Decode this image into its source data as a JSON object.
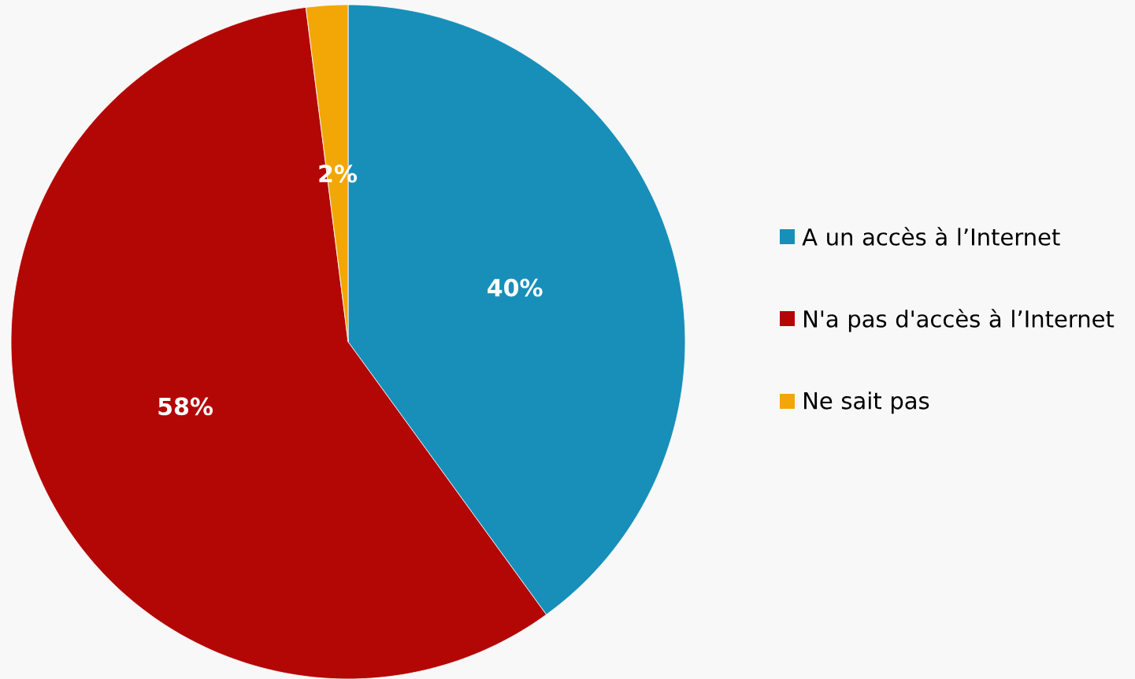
{
  "chart_data": {
    "type": "pie",
    "categories": [
      "A un accès à l’Internet",
      "N'a pas d'accès à l’Internet",
      "Ne sait pas"
    ],
    "values": [
      40,
      58,
      2
    ],
    "colors": [
      "#188fb9",
      "#b30706",
      "#f2a707"
    ],
    "value_labels": [
      "40%",
      "58%",
      "2%"
    ],
    "legend": "right"
  }
}
